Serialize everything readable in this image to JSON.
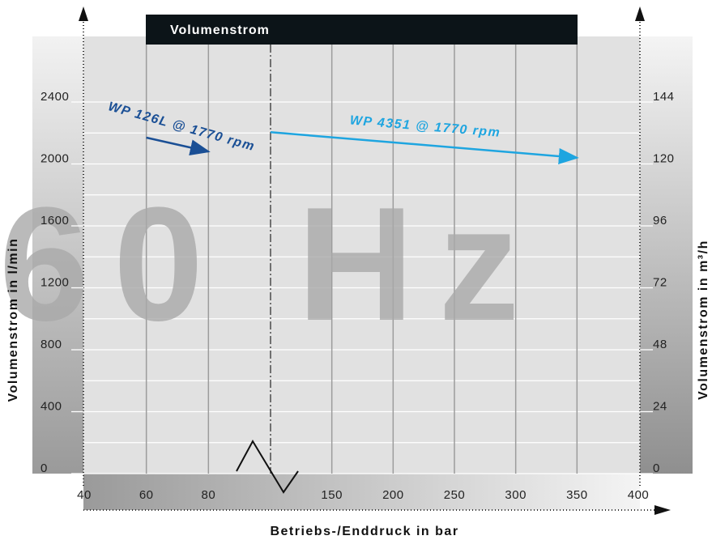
{
  "chart_data": {
    "type": "line",
    "title": "Volumenstrom",
    "watermark": "60 Hz",
    "ylabel": "Volumenstrom in l/min",
    "y2label": "Volumenstrom in m³/h",
    "xlabel": "Betriebs-/Enddruck in bar",
    "ylim": [
      0,
      2400
    ],
    "yticks": [
      0,
      400,
      800,
      1200,
      1600,
      2000,
      2400
    ],
    "yminor": [
      200,
      600,
      1000,
      1400,
      1800,
      2200
    ],
    "y2lim": [
      0,
      144
    ],
    "y2ticks": [
      0,
      24,
      48,
      72,
      96,
      120,
      144
    ],
    "x_segments": [
      {
        "xlim": [
          40,
          100
        ],
        "xticks": [
          40,
          60,
          80
        ]
      },
      {
        "xlim": [
          100,
          400
        ],
        "xticks": [
          150,
          200,
          250,
          300,
          350,
          400
        ]
      }
    ],
    "grid": true,
    "series": [
      {
        "name": "WP 126L @ 1770 rpm",
        "color": "#1a4f95",
        "segment": 0,
        "x": [
          60,
          80
        ],
        "values": [
          2170,
          2080
        ]
      },
      {
        "name": "WP 4351 @ 1770 rpm",
        "color": "#1ea5e0",
        "segment": 1,
        "x": [
          100,
          350
        ],
        "values": [
          2205,
          2040
        ]
      }
    ]
  }
}
